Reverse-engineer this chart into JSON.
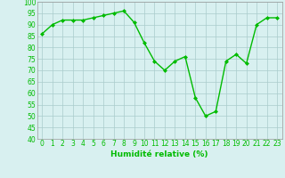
{
  "x": [
    0,
    1,
    2,
    3,
    4,
    5,
    6,
    7,
    8,
    9,
    10,
    11,
    12,
    13,
    14,
    15,
    16,
    17,
    18,
    19,
    20,
    21,
    22,
    23
  ],
  "y": [
    86,
    90,
    92,
    92,
    92,
    93,
    94,
    95,
    96,
    91,
    82,
    74,
    70,
    74,
    76,
    58,
    50,
    52,
    74,
    77,
    73,
    90,
    93,
    93
  ],
  "line_color": "#00bb00",
  "marker": "D",
  "marker_size": 2.0,
  "bg_color": "#d8f0f0",
  "grid_color": "#aacccc",
  "xlabel": "Humidité relative (%)",
  "ylim": [
    40,
    100
  ],
  "yticks": [
    40,
    45,
    50,
    55,
    60,
    65,
    70,
    75,
    80,
    85,
    90,
    95,
    100
  ],
  "xticks": [
    0,
    1,
    2,
    3,
    4,
    5,
    6,
    7,
    8,
    9,
    10,
    11,
    12,
    13,
    14,
    15,
    16,
    17,
    18,
    19,
    20,
    21,
    22,
    23
  ],
  "xlabel_fontsize": 6.5,
  "tick_fontsize": 5.5,
  "linewidth": 1.0
}
